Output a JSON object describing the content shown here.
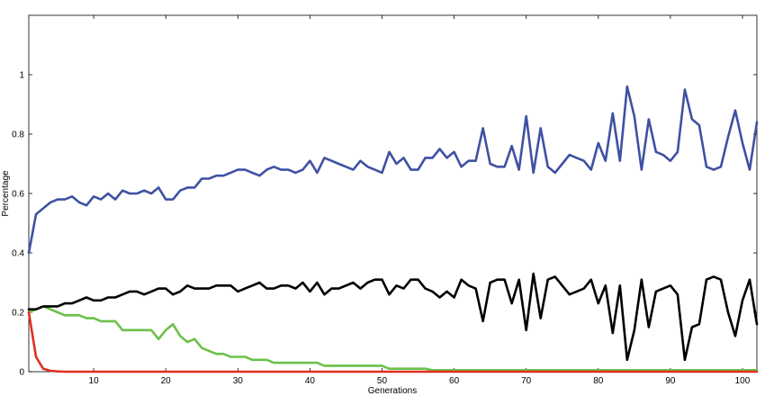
{
  "chart_data": {
    "type": "line",
    "title": "",
    "xlabel": "Generations",
    "ylabel": "Percentage",
    "xlim": [
      1,
      102
    ],
    "ylim": [
      0,
      1.2
    ],
    "grid": false,
    "xticks": [
      10,
      20,
      30,
      40,
      50,
      60,
      70,
      80,
      90,
      100
    ],
    "xtick_labels": [
      "10",
      "20",
      "30",
      "40",
      "50",
      "60",
      "70",
      "80",
      "90",
      "100"
    ],
    "yticks": [
      0,
      0.2,
      0.4,
      0.6,
      0.8,
      1
    ],
    "ytick_labels": [
      "0",
      "0.2",
      "0.4",
      "0.6",
      "0.8",
      "1"
    ],
    "x_start": 1,
    "series": [
      {
        "color": "#3f51a3",
        "values": [
          0.4,
          0.53,
          0.55,
          0.57,
          0.58,
          0.58,
          0.59,
          0.57,
          0.56,
          0.59,
          0.58,
          0.6,
          0.58,
          0.61,
          0.6,
          0.6,
          0.61,
          0.6,
          0.62,
          0.58,
          0.58,
          0.61,
          0.62,
          0.62,
          0.65,
          0.65,
          0.66,
          0.66,
          0.67,
          0.68,
          0.68,
          0.67,
          0.66,
          0.68,
          0.69,
          0.68,
          0.68,
          0.67,
          0.68,
          0.71,
          0.67,
          0.72,
          0.71,
          0.7,
          0.69,
          0.68,
          0.71,
          0.69,
          0.68,
          0.67,
          0.74,
          0.7,
          0.72,
          0.68,
          0.68,
          0.72,
          0.72,
          0.75,
          0.72,
          0.74,
          0.69,
          0.71,
          0.71,
          0.82,
          0.7,
          0.69,
          0.69,
          0.76,
          0.68,
          0.86,
          0.67,
          0.82,
          0.69,
          0.67,
          0.7,
          0.73,
          0.72,
          0.71,
          0.68,
          0.77,
          0.71,
          0.87,
          0.71,
          0.96,
          0.86,
          0.68,
          0.85,
          0.74,
          0.73,
          0.71,
          0.74,
          0.95,
          0.85,
          0.83,
          0.69,
          0.68,
          0.69,
          0.79,
          0.88,
          0.77,
          0.68,
          0.84
        ]
      },
      {
        "color": "#000000",
        "values": [
          0.21,
          0.21,
          0.22,
          0.22,
          0.22,
          0.23,
          0.23,
          0.24,
          0.25,
          0.24,
          0.24,
          0.25,
          0.25,
          0.26,
          0.27,
          0.27,
          0.26,
          0.27,
          0.28,
          0.28,
          0.26,
          0.27,
          0.29,
          0.28,
          0.28,
          0.28,
          0.29,
          0.29,
          0.29,
          0.27,
          0.28,
          0.29,
          0.3,
          0.28,
          0.28,
          0.29,
          0.29,
          0.28,
          0.3,
          0.27,
          0.3,
          0.26,
          0.28,
          0.28,
          0.29,
          0.3,
          0.28,
          0.3,
          0.31,
          0.31,
          0.26,
          0.29,
          0.28,
          0.31,
          0.31,
          0.28,
          0.27,
          0.25,
          0.27,
          0.25,
          0.31,
          0.29,
          0.28,
          0.17,
          0.3,
          0.31,
          0.31,
          0.23,
          0.31,
          0.14,
          0.33,
          0.18,
          0.31,
          0.32,
          0.29,
          0.26,
          0.27,
          0.28,
          0.31,
          0.23,
          0.29,
          0.13,
          0.29,
          0.04,
          0.14,
          0.31,
          0.15,
          0.27,
          0.28,
          0.29,
          0.26,
          0.04,
          0.15,
          0.16,
          0.31,
          0.32,
          0.31,
          0.2,
          0.12,
          0.24,
          0.31,
          0.16
        ]
      },
      {
        "color": "#6cc04a",
        "values": [
          0.2,
          0.21,
          0.22,
          0.21,
          0.2,
          0.19,
          0.19,
          0.19,
          0.18,
          0.18,
          0.17,
          0.17,
          0.17,
          0.14,
          0.14,
          0.14,
          0.14,
          0.14,
          0.11,
          0.14,
          0.16,
          0.12,
          0.1,
          0.11,
          0.08,
          0.07,
          0.06,
          0.06,
          0.05,
          0.05,
          0.05,
          0.04,
          0.04,
          0.04,
          0.03,
          0.03,
          0.03,
          0.03,
          0.03,
          0.03,
          0.03,
          0.02,
          0.02,
          0.02,
          0.02,
          0.02,
          0.02,
          0.02,
          0.02,
          0.02,
          0.01,
          0.01,
          0.01,
          0.01,
          0.01,
          0.01,
          0.005,
          0.005,
          0.005,
          0.005,
          0.005,
          0.005,
          0.005,
          0.005,
          0.005,
          0.005,
          0.005,
          0.005,
          0.005,
          0.005,
          0.005,
          0.005,
          0.005,
          0.005,
          0.005,
          0.005,
          0.005,
          0.005,
          0.005,
          0.005,
          0.005,
          0.005,
          0.005,
          0.005,
          0.005,
          0.005,
          0.005,
          0.005,
          0.005,
          0.005,
          0.005,
          0.005,
          0.005,
          0.005,
          0.005,
          0.005,
          0.005,
          0.005,
          0.005,
          0.005,
          0.005,
          0.005
        ]
      },
      {
        "color": "#e0301e",
        "values": [
          0.2,
          0.05,
          0.01,
          0.003,
          0.001,
          0,
          0,
          0,
          0,
          0,
          0,
          0,
          0,
          0,
          0,
          0,
          0,
          0,
          0,
          0,
          0,
          0,
          0,
          0,
          0,
          0,
          0,
          0,
          0,
          0,
          0,
          0,
          0,
          0,
          0,
          0,
          0,
          0,
          0,
          0,
          0,
          0,
          0,
          0,
          0,
          0,
          0,
          0,
          0,
          0,
          0,
          0,
          0,
          0,
          0,
          0,
          0,
          0,
          0,
          0,
          0,
          0,
          0,
          0,
          0,
          0,
          0,
          0,
          0,
          0,
          0,
          0,
          0,
          0,
          0,
          0,
          0,
          0,
          0,
          0,
          0,
          0,
          0,
          0,
          0,
          0,
          0,
          0,
          0,
          0,
          0,
          0,
          0,
          0,
          0,
          0,
          0,
          0,
          0,
          0,
          0,
          0
        ]
      }
    ]
  }
}
